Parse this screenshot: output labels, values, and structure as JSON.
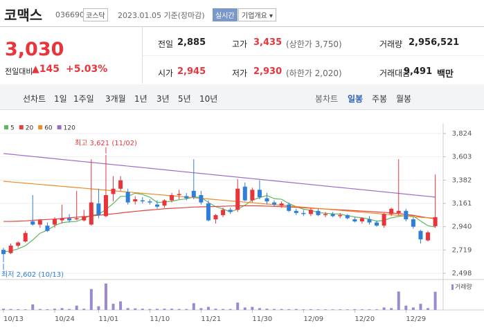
{
  "header": {
    "name": "코맥스",
    "code": "036690",
    "market": "코스닥",
    "date": "2023.01.05 기준(장마감)",
    "realtime": "실시간",
    "company": "기업개요 ▾"
  },
  "quote": {
    "price": "3,030",
    "change_label": "전일대비",
    "change": "▲145",
    "change_rate": "+5.03%",
    "items": [
      {
        "label": "전일",
        "value": "2,885"
      },
      {
        "label": "고가",
        "value": "3,435",
        "note": "(상한가 3,750)"
      },
      {
        "label": "거래량",
        "value": "2,956,521"
      },
      {
        "label": "시가",
        "value": "2,945"
      },
      {
        "label": "저가",
        "value": "2,930",
        "note": "(하한가 2,020)"
      },
      {
        "label": "거래대금",
        "value": "9,491",
        "unit": "백만"
      }
    ]
  },
  "tabs": {
    "line_label": "선차트",
    "line": [
      "1일",
      "1주일",
      "3개월",
      "1년",
      "3년",
      "5년",
      "10년"
    ],
    "candle_label": "봉차트",
    "candle": [
      "일봉",
      "주봉",
      "월봉"
    ]
  },
  "chart_data": {
    "type": "candlestick",
    "categories": [
      "10/13",
      null,
      null,
      null,
      null,
      null,
      null,
      "10/24",
      null,
      null,
      null,
      null,
      null,
      "11/01",
      null,
      null,
      null,
      null,
      null,
      null,
      "11/10",
      null,
      null,
      null,
      null,
      null,
      null,
      "11/21",
      null,
      null,
      null,
      null,
      null,
      null,
      "11/30",
      null,
      null,
      null,
      null,
      null,
      null,
      "12/09",
      null,
      null,
      null,
      null,
      null,
      null,
      "12/20",
      null,
      null,
      null,
      null,
      null,
      null,
      "12/29",
      null,
      null,
      null,
      null
    ],
    "open": [
      2720,
      2690,
      2760,
      2800,
      2990,
      2960,
      2950,
      2960,
      3000,
      3020,
      3010,
      3000,
      2960,
      3160,
      3040,
      3250,
      3300,
      3270,
      3180,
      3190,
      3180,
      3150,
      3140,
      3190,
      3240,
      3230,
      3280,
      3240,
      3160,
      3010,
      3050,
      3100,
      3100,
      3320,
      3190,
      3290,
      3210,
      3170,
      3140,
      3150,
      3090,
      3070,
      3060,
      3090,
      3050,
      3060,
      3040,
      3050,
      3010,
      2990,
      3010,
      2980,
      2950,
      3060,
      3070,
      3090,
      3010,
      2900,
      2810,
      2945
    ],
    "high": [
      2740,
      2780,
      2800,
      2900,
      3240,
      3010,
      2980,
      3030,
      3150,
      3060,
      3280,
      3100,
      3580,
      3300,
      3621,
      3420,
      3420,
      3300,
      3230,
      3220,
      3200,
      3190,
      3200,
      3260,
      3290,
      3260,
      3580,
      3280,
      3190,
      3060,
      3120,
      3120,
      3390,
      3360,
      3310,
      3380,
      3260,
      3190,
      3180,
      3170,
      3110,
      3100,
      3120,
      3110,
      3080,
      3080,
      3070,
      3060,
      3030,
      3030,
      3040,
      3000,
      3070,
      3120,
      3580,
      3110,
      3030,
      2910,
      2900,
      3435
    ],
    "low": [
      2602,
      2680,
      2740,
      2790,
      2950,
      2930,
      2890,
      2930,
      2970,
      2980,
      3000,
      2990,
      2950,
      3020,
      3030,
      3180,
      3280,
      3150,
      3150,
      3160,
      3150,
      3110,
      3120,
      3170,
      3200,
      3190,
      3200,
      3150,
      2990,
      2970,
      3030,
      3060,
      3080,
      3180,
      3170,
      3200,
      3150,
      3130,
      3120,
      3080,
      3050,
      3040,
      3040,
      3040,
      3030,
      3030,
      3020,
      3010,
      2980,
      2970,
      2960,
      2940,
      2930,
      3040,
      3050,
      2990,
      2920,
      2780,
      2800,
      2930
    ],
    "close": [
      2680,
      2760,
      2790,
      2880,
      2960,
      3000,
      2900,
      3010,
      3020,
      3000,
      3020,
      3040,
      3170,
      3050,
      3240,
      3300,
      3380,
      3170,
      3200,
      3180,
      3170,
      3130,
      3190,
      3240,
      3250,
      3210,
      3220,
      3170,
      3000,
      3050,
      3100,
      3080,
      3300,
      3190,
      3290,
      3220,
      3180,
      3150,
      3160,
      3090,
      3070,
      3060,
      3100,
      3050,
      3060,
      3040,
      3050,
      3020,
      2990,
      3020,
      2980,
      2950,
      3060,
      3110,
      3090,
      3010,
      2940,
      2820,
      2885,
      3030
    ],
    "up_color": "#e8343a",
    "down_color": "#2f7ed8",
    "series": [
      {
        "name": "5",
        "color": "#5cb85c",
        "values": [
          2700,
          2710,
          2730,
          2760,
          2814,
          2878,
          2906,
          2950,
          2978,
          2986,
          2990,
          3018,
          3050,
          3056,
          3104,
          3160,
          3228,
          3228,
          3258,
          3246,
          3220,
          3170,
          3174,
          3182,
          3196,
          3204,
          3222,
          3218,
          3170,
          3130,
          3108,
          3080,
          3106,
          3144,
          3192,
          3216,
          3236,
          3206,
          3200,
          3160,
          3130,
          3106,
          3096,
          3074,
          3068,
          3062,
          3060,
          3044,
          3032,
          3024,
          3012,
          2992,
          3000,
          3024,
          3038,
          3044,
          3042,
          2994,
          2949,
          2937
        ]
      },
      {
        "name": "20",
        "color": "#e8413c",
        "values": [
          2990,
          2990,
          2992,
          2995,
          3000,
          3005,
          3008,
          3012,
          3018,
          3025,
          3030,
          3035,
          3042,
          3048,
          3055,
          3062,
          3070,
          3078,
          3085,
          3092,
          3098,
          3104,
          3110,
          3114,
          3118,
          3122,
          3126,
          3128,
          3130,
          3132,
          3134,
          3136,
          3138,
          3138,
          3138,
          3137,
          3135,
          3133,
          3130,
          3127,
          3124,
          3120,
          3116,
          3112,
          3108,
          3104,
          3100,
          3096,
          3092,
          3088,
          3084,
          3080,
          3076,
          3070,
          3064,
          3056,
          3048,
          3036,
          3024,
          3015
        ]
      },
      {
        "name": "60",
        "color": "#f08a24",
        "values": [
          3371,
          3365,
          3359,
          3353,
          3347,
          3341,
          3335,
          3329,
          3323,
          3317,
          3311,
          3305,
          3299,
          3293,
          3287,
          3281,
          3275,
          3269,
          3263,
          3257,
          3251,
          3245,
          3239,
          3233,
          3227,
          3221,
          3215,
          3209,
          3203,
          3197,
          3191,
          3185,
          3179,
          3173,
          3167,
          3161,
          3155,
          3149,
          3143,
          3137,
          3131,
          3125,
          3119,
          3113,
          3107,
          3101,
          3095,
          3089,
          3083,
          3077,
          3071,
          3065,
          3059,
          3053,
          3047,
          3041,
          3035,
          3029,
          3025,
          3022
        ]
      },
      {
        "name": "120",
        "color": "#9c6cc4",
        "values": [
          3634,
          3627,
          3620,
          3613,
          3606,
          3599,
          3592,
          3585,
          3578,
          3571,
          3564,
          3557,
          3550,
          3543,
          3536,
          3529,
          3522,
          3515,
          3508,
          3501,
          3494,
          3487,
          3480,
          3473,
          3466,
          3459,
          3452,
          3445,
          3438,
          3431,
          3424,
          3417,
          3410,
          3403,
          3396,
          3389,
          3382,
          3375,
          3368,
          3361,
          3354,
          3347,
          3340,
          3333,
          3326,
          3319,
          3312,
          3305,
          3298,
          3291,
          3284,
          3277,
          3270,
          3263,
          3256,
          3249,
          3242,
          3235,
          3228,
          3221
        ]
      }
    ],
    "volume": {
      "name": "거래량",
      "color": "#9c8ad0",
      "values": [
        200000,
        150000,
        120000,
        100000,
        900000,
        150000,
        120000,
        200000,
        300000,
        150000,
        700000,
        200000,
        3400000,
        600000,
        4300000,
        1000000,
        1400000,
        300000,
        250000,
        200000,
        150000,
        180000,
        200000,
        200000,
        150000,
        150000,
        1100000,
        300000,
        500000,
        200000,
        150000,
        150000,
        1200000,
        400000,
        500000,
        300000,
        200000,
        150000,
        150000,
        120000,
        150000,
        100000,
        120000,
        100000,
        100000,
        90000,
        100000,
        90000,
        120000,
        100000,
        100000,
        100000,
        400000,
        300000,
        3000000,
        700000,
        400000,
        1000000,
        300000,
        2956521
      ]
    },
    "ylim": [
      2498,
      3824
    ],
    "yticks": [
      {
        "value": 3824,
        "label": "3,824"
      },
      {
        "value": 3603,
        "label": "3,603"
      },
      {
        "value": 3382,
        "label": "3,382"
      },
      {
        "value": 3161,
        "label": "3,161"
      },
      {
        "value": 2940,
        "label": "2,940"
      },
      {
        "value": 2719,
        "label": "2,719"
      },
      {
        "value": 2498,
        "label": "2,498"
      }
    ],
    "y2lim": [
      0,
      4500000
    ],
    "annotations": {
      "high": "최고 3,621 (11/02)",
      "low": "최저 2,602 (10/13)"
    },
    "grid": true
  }
}
